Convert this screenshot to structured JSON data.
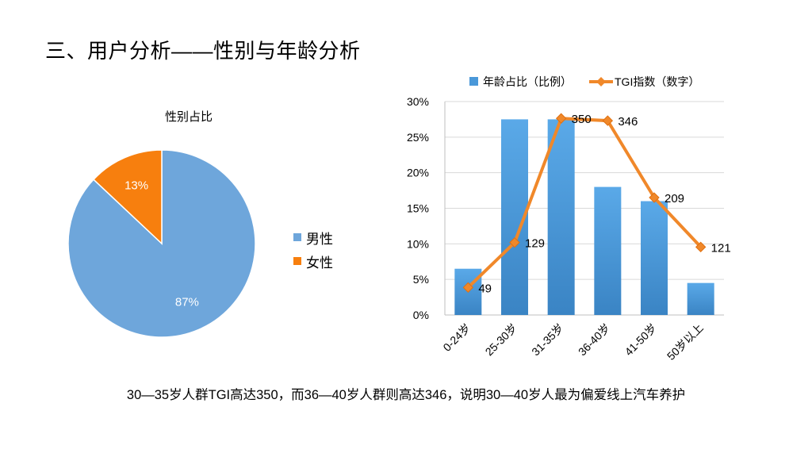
{
  "page_title": "三、用户分析——性别与年龄分析",
  "caption": "30—35岁人群TGI高达350，而36—40岁人群则高达346，说明30—40岁人最为偏爱线上汽车养护",
  "chart_data": [
    {
      "type": "pie",
      "title": "性别占比",
      "labels": [
        "男性",
        "女性"
      ],
      "values": [
        87,
        13
      ],
      "value_labels": [
        "87%",
        "13%"
      ],
      "colors": [
        "#6ea6db",
        "#f77f0e"
      ],
      "legend": "right"
    },
    {
      "type": "bar",
      "categories": [
        "0-24岁",
        "25-30岁",
        "31-35岁",
        "36-40岁",
        "41-50岁",
        "50岁以上"
      ],
      "series": [
        {
          "name": "年龄占比（比例）",
          "type": "bar",
          "values": [
            6.5,
            27.5,
            27.5,
            18,
            16,
            4.5
          ],
          "color": "#4a98d9"
        },
        {
          "name": "TGI指数（数字）",
          "type": "line",
          "values": [
            49,
            129,
            350,
            346,
            209,
            121
          ],
          "labels": [
            "49",
            "129",
            "350",
            "346",
            "209",
            "121"
          ],
          "color": "#f0882a"
        }
      ],
      "yticks": [
        "0%",
        "5%",
        "10%",
        "15%",
        "20%",
        "25%",
        "30%"
      ],
      "ylim": [
        0,
        30
      ],
      "secondary_ylim": [
        0,
        380
      ],
      "grid": true,
      "legend": "top"
    }
  ]
}
